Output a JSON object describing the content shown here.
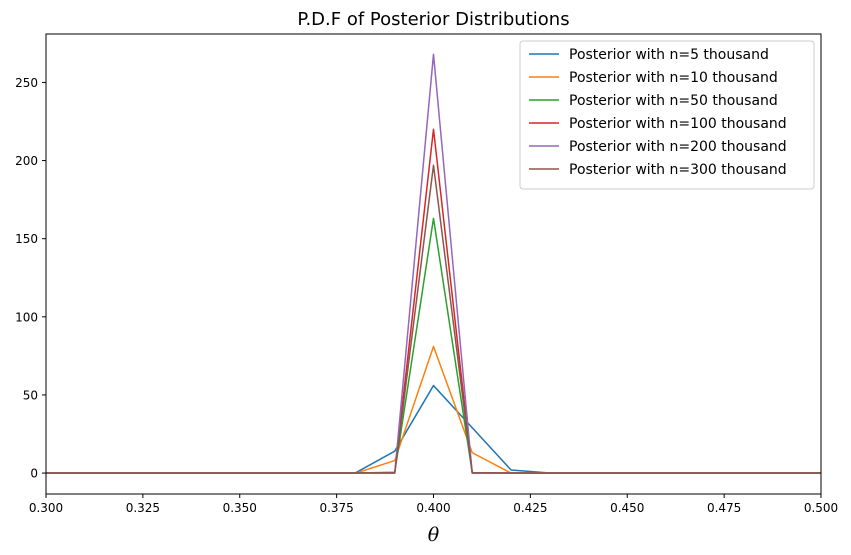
{
  "chart_data": {
    "type": "line",
    "title": "P.D.F of Posterior Distributions",
    "xlabel": "θ",
    "ylabel": "",
    "xlim": [
      0.3,
      0.5
    ],
    "ylim": [
      -13.4,
      281
    ],
    "x_ticks": [
      "0.300",
      "0.325",
      "0.350",
      "0.375",
      "0.400",
      "0.425",
      "0.450",
      "0.475",
      "0.500"
    ],
    "y_ticks": [
      "0",
      "50",
      "100",
      "150",
      "200",
      "250"
    ],
    "grid": false,
    "legend_position": "upper right",
    "x": [
      0.3,
      0.31,
      0.32,
      0.33,
      0.34,
      0.35,
      0.36,
      0.37,
      0.38,
      0.39,
      0.4,
      0.41,
      0.42,
      0.43,
      0.44,
      0.45,
      0.46,
      0.47,
      0.48,
      0.49,
      0.5
    ],
    "series": [
      {
        "name": "Posterior with n=5 thousand",
        "color": "#1f77b4",
        "values": [
          0,
          0,
          0,
          0,
          0,
          0,
          0,
          0,
          0.3,
          14,
          56,
          29,
          2,
          0,
          0,
          0,
          0,
          0,
          0,
          0,
          0
        ]
      },
      {
        "name": "Posterior with n=10 thousand",
        "color": "#ff7f0e",
        "values": [
          0,
          0,
          0,
          0,
          0,
          0,
          0,
          0,
          0,
          8,
          81,
          13,
          0,
          0,
          0,
          0,
          0,
          0,
          0,
          0,
          0
        ]
      },
      {
        "name": "Posterior with n=50 thousand",
        "color": "#2ca02c",
        "values": [
          0,
          0,
          0,
          0,
          0,
          0,
          0,
          0,
          0,
          0.5,
          163,
          0.3,
          0,
          0,
          0,
          0,
          0,
          0,
          0,
          0,
          0
        ]
      },
      {
        "name": "Posterior with n=100 thousand",
        "color": "#d62728",
        "values": [
          0,
          0,
          0,
          0,
          0,
          0,
          0,
          0,
          0,
          0,
          220,
          0,
          0,
          0,
          0,
          0,
          0,
          0,
          0,
          0,
          0
        ]
      },
      {
        "name": "Posterior with n=200 thousand",
        "color": "#9467bd",
        "values": [
          0,
          0,
          0,
          0,
          0,
          0,
          0,
          0,
          0,
          0,
          268,
          0,
          0,
          0,
          0,
          0,
          0,
          0,
          0,
          0,
          0
        ]
      },
      {
        "name": "Posterior with n=300 thousand",
        "color": "#8c564b",
        "values": [
          0,
          0,
          0,
          0,
          0,
          0,
          0,
          0,
          0,
          0,
          197,
          0,
          0,
          0,
          0,
          0,
          0,
          0,
          0,
          0,
          0
        ]
      }
    ]
  }
}
